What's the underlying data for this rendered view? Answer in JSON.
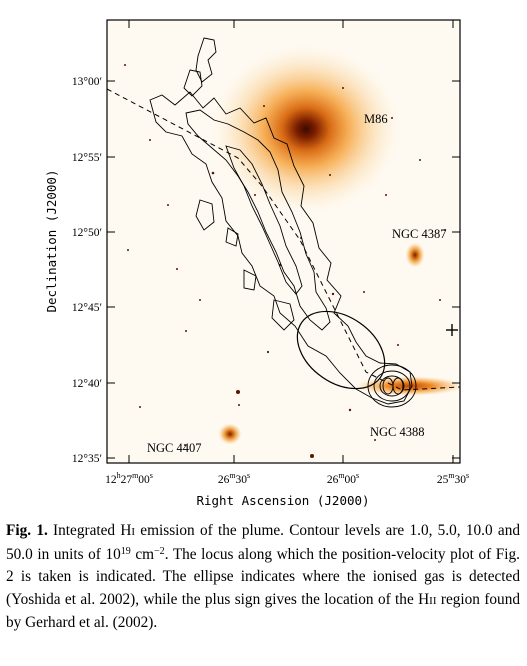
{
  "figure": {
    "x_axis_title": "Right Ascension (J2000)",
    "y_axis_title": "Declination (J2000)",
    "x_ticks": [
      {
        "h": "12",
        "hu": "h",
        "m": "27",
        "mu": "m",
        "s": "00",
        "su": "s"
      },
      {
        "m": "26",
        "mu": "m",
        "s": "30",
        "su": "s"
      },
      {
        "m": "26",
        "mu": "m",
        "s": "00",
        "su": "s"
      },
      {
        "m": "25",
        "mu": "m",
        "s": "30",
        "su": "s"
      }
    ],
    "y_ticks": [
      "13°00′",
      "12°55′",
      "12°50′",
      "12°45′",
      "12°40′",
      "12°35′"
    ],
    "objects": [
      "M86",
      "NGC 4387",
      "NGC 4388",
      "NGC 4407"
    ],
    "colors": {
      "frame": "#000000",
      "background": "#fefaf2",
      "halo": "#f5a23c",
      "core": "#7a1e00",
      "contour": "#000000"
    }
  },
  "caption": {
    "label": "Fig. 1.",
    "text_1": " Integrated H",
    "hi_roman": "I",
    "text_2": " emission of the plume. Contour levels are 1.0, 5.0, 10.0 and 50.0 in units of 10",
    "exponent_1": "19",
    "text_3": " cm",
    "exponent_2": "−2",
    "text_4": ". The locus along which the position-velocity plot of Fig. 2 is taken is indicated. The ellipse indicates where the ionised gas is detected (Yoshida et al. 2002), while the plus sign gives the location of the H",
    "hii_roman": "II",
    "text_5": " region found by Gerhard et al. (2002)."
  }
}
